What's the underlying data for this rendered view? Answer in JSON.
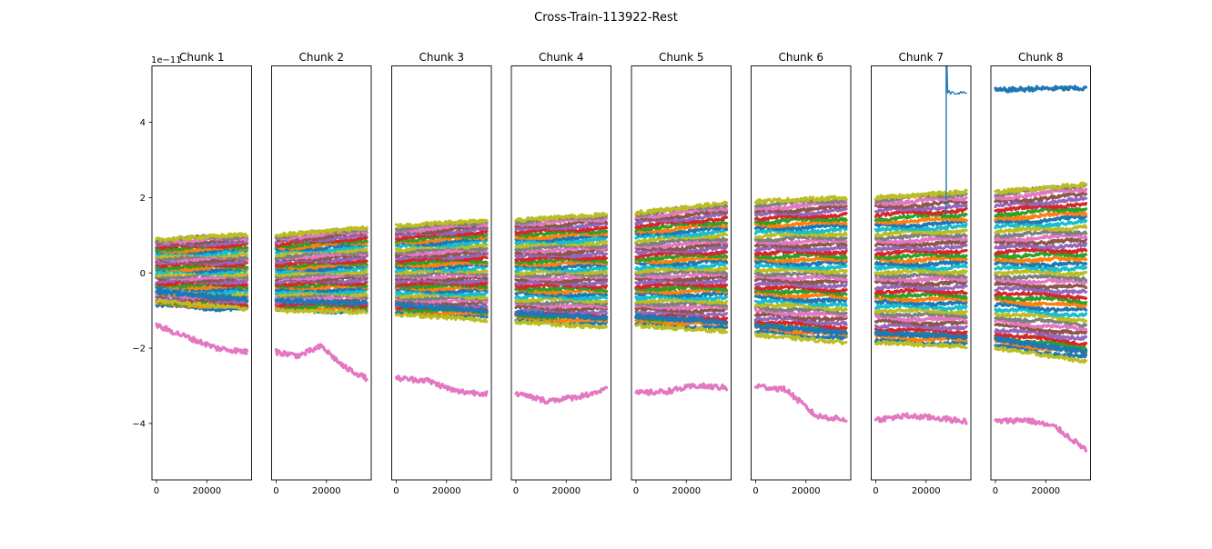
{
  "figure_title": "Cross-Train-113922-Rest",
  "chart_data": {
    "type": "line",
    "title": "Cross-Train-113922-Rest",
    "y_offset_label": "1e−11",
    "ylim": [
      -5.5,
      5.5
    ],
    "yticks": [
      -4,
      -2,
      0,
      2,
      4
    ],
    "ytick_labels": [
      "−4",
      "−2",
      "0",
      "2",
      "4"
    ],
    "xlim": [
      -1800,
      37800
    ],
    "xticks": [
      0,
      20000
    ],
    "xtick_labels": [
      "0",
      "20000"
    ],
    "x_range": [
      0,
      36000
    ],
    "grid": false,
    "legend": "none",
    "palette": [
      "#1f77b4",
      "#ff7f0e",
      "#2ca02c",
      "#d62728",
      "#9467bd",
      "#8c564b",
      "#e377c2",
      "#7f7f7f",
      "#bcbd22",
      "#17becf"
    ],
    "panels": [
      {
        "name": "Chunk 1",
        "band_min": [
          -0.9,
          -1.0
        ],
        "band_max": [
          0.9,
          1.0
        ],
        "top_series": [
          0.88,
          1.02
        ],
        "bottom_series": [
          -0.75,
          -0.95
        ],
        "low_outlier": [
          -1.4,
          -1.7,
          -2.0,
          -2.1
        ]
      },
      {
        "name": "Chunk 2",
        "band_min": [
          -1.0,
          -1.05
        ],
        "band_max": [
          1.0,
          1.2
        ],
        "top_series": [
          1.0,
          1.2
        ],
        "bottom_series": [
          -1.0,
          -1.05
        ],
        "low_outlier": [
          -2.1,
          -2.2,
          -1.95,
          -2.5,
          -2.8
        ]
      },
      {
        "name": "Chunk 3",
        "band_min": [
          -1.1,
          -1.2
        ],
        "band_max": [
          1.2,
          1.4
        ],
        "top_series": [
          1.25,
          1.4
        ],
        "bottom_series": [
          -1.1,
          -1.25
        ],
        "low_outlier": [
          -2.8,
          -2.85,
          -3.15,
          -3.2
        ]
      },
      {
        "name": "Chunk 4",
        "band_min": [
          -1.3,
          -1.4
        ],
        "band_max": [
          1.4,
          1.55
        ],
        "top_series": [
          1.4,
          1.55
        ],
        "bottom_series": [
          -1.3,
          -1.45
        ],
        "low_outlier": [
          -3.2,
          -3.4,
          -3.3,
          -3.1
        ]
      },
      {
        "name": "Chunk 5",
        "band_min": [
          -1.4,
          -1.5
        ],
        "band_max": [
          1.6,
          1.85
        ],
        "top_series": [
          1.6,
          1.85
        ],
        "bottom_series": [
          -1.4,
          -1.55
        ],
        "low_outlier": [
          -3.2,
          -3.15,
          -3.0,
          -3.05
        ]
      },
      {
        "name": "Chunk 6",
        "band_min": [
          -1.6,
          -1.8
        ],
        "band_max": [
          1.85,
          2.0
        ],
        "top_series": [
          1.9,
          2.0
        ],
        "bottom_series": [
          -1.65,
          -1.85
        ],
        "low_outlier": [
          -3.0,
          -3.1,
          -3.8,
          -3.9
        ]
      },
      {
        "name": "Chunk 7",
        "band_min": [
          -1.85,
          -1.95
        ],
        "band_max": [
          2.0,
          2.15
        ],
        "top_series": [
          2.0,
          2.15
        ],
        "bottom_series": [
          -1.85,
          -1.95
        ],
        "low_outlier": [
          -3.9,
          -3.8,
          -3.85,
          -3.95
        ],
        "spike_series": {
          "x": 28000,
          "before": 1.6,
          "after": 4.8
        }
      },
      {
        "name": "Chunk 8",
        "band_min": [
          -2.0,
          -2.3
        ],
        "band_max": [
          2.15,
          2.4
        ],
        "top_series": [
          2.15,
          2.35
        ],
        "bottom_series": [
          -2.0,
          -2.35
        ],
        "low_outlier": [
          -3.95,
          -3.9,
          -4.1,
          -4.7
        ],
        "high_outlier": [
          4.85,
          4.9,
          4.9
        ]
      }
    ]
  }
}
